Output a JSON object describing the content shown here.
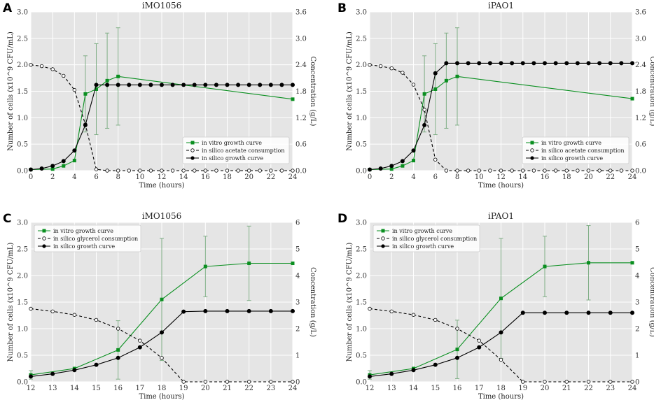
{
  "colors": {
    "vitro": "#0a8f20",
    "silico_growth": "#000000",
    "consumption": "#000000",
    "errbar": "#7fae85"
  },
  "chart_data": [
    {
      "type": "line",
      "panel": "A",
      "title": "iMO1056",
      "xlabel": "Time (hours)",
      "ylabel": "Number of cells (x10^9 CFU/mL)",
      "y2label": "Concentration (g/L)",
      "xlim": [
        0,
        24
      ],
      "ylim": [
        0,
        3.0
      ],
      "y2lim": [
        0,
        3.6
      ],
      "xticks": [
        "0",
        "2",
        "4",
        "6",
        "8",
        "10",
        "12",
        "14",
        "16",
        "18",
        "20",
        "22",
        "24"
      ],
      "yticks": [
        "0.0",
        "0.5",
        "1.0",
        "1.5",
        "2.0",
        "2.5",
        "3.0"
      ],
      "y2ticks": [
        "0.0",
        "0.6",
        "1.2",
        "1.8",
        "2.4",
        "3.0",
        "3.6"
      ],
      "legend_position": "lower-right",
      "series": [
        {
          "name": "in vitro growth curve",
          "style": "vitro",
          "axis": "left",
          "x": [
            0,
            2,
            3,
            4,
            5,
            6,
            7,
            8,
            24
          ],
          "y": [
            0.02,
            0.03,
            0.09,
            0.19,
            1.45,
            1.54,
            1.7,
            1.78,
            1.35
          ],
          "err": [
            0,
            0,
            0,
            0,
            0.72,
            0.86,
            0.9,
            0.92,
            0
          ]
        },
        {
          "name": "in silico acetate consumption",
          "style": "consumption",
          "axis": "right",
          "x": [
            0,
            1,
            2,
            3,
            4,
            5,
            6,
            7,
            8,
            9,
            10,
            11,
            12,
            13,
            14,
            15,
            16,
            17,
            18,
            19,
            20,
            21,
            22,
            23,
            24
          ],
          "y": [
            2.4,
            2.37,
            2.3,
            2.15,
            1.83,
            1.05,
            0.03,
            0,
            0,
            0,
            0,
            0,
            0,
            0,
            0,
            0,
            0,
            0,
            0,
            0,
            0,
            0,
            0,
            0,
            0
          ]
        },
        {
          "name": "in silico growth curve",
          "style": "silico",
          "axis": "left",
          "x": [
            0,
            1,
            2,
            3,
            4,
            5,
            6,
            7,
            8,
            9,
            10,
            11,
            12,
            13,
            14,
            15,
            16,
            17,
            18,
            19,
            20,
            21,
            22,
            23,
            24
          ],
          "y": [
            0.02,
            0.04,
            0.09,
            0.18,
            0.38,
            0.86,
            1.62,
            1.62,
            1.62,
            1.62,
            1.62,
            1.62,
            1.62,
            1.62,
            1.62,
            1.62,
            1.62,
            1.62,
            1.62,
            1.62,
            1.62,
            1.62,
            1.62,
            1.62,
            1.62
          ]
        }
      ]
    },
    {
      "type": "line",
      "panel": "B",
      "title": "iPAO1",
      "xlabel": "Time (hours)",
      "ylabel": "Number of cells (x10^9 CFU/mL)",
      "y2label": "Concentration (g/L)",
      "xlim": [
        0,
        24
      ],
      "ylim": [
        0,
        3.0
      ],
      "y2lim": [
        0,
        3.6
      ],
      "xticks": [
        "0",
        "2",
        "4",
        "6",
        "8",
        "10",
        "12",
        "14",
        "16",
        "18",
        "20",
        "22",
        "24"
      ],
      "yticks": [
        "0.0",
        "0.5",
        "1.0",
        "1.5",
        "2.0",
        "2.5",
        "3.0"
      ],
      "y2ticks": [
        "0.0",
        "0.6",
        "1.2",
        "1.8",
        "2.4",
        "3.0",
        "3.6"
      ],
      "legend_position": "lower-right",
      "series": [
        {
          "name": "in vitro growth curve",
          "style": "vitro",
          "axis": "left",
          "x": [
            0,
            2,
            3,
            4,
            5,
            6,
            7,
            8,
            24
          ],
          "y": [
            0.02,
            0.03,
            0.09,
            0.19,
            1.45,
            1.54,
            1.7,
            1.78,
            1.36
          ],
          "err": [
            0,
            0,
            0,
            0,
            0.72,
            0.86,
            0.9,
            0.92,
            0
          ]
        },
        {
          "name": "in silico acetate consumption",
          "style": "consumption",
          "axis": "right",
          "x": [
            0,
            1,
            2,
            3,
            4,
            5,
            6,
            7,
            8,
            9,
            10,
            11,
            12,
            13,
            14,
            15,
            16,
            17,
            18,
            19,
            20,
            21,
            22,
            23,
            24
          ],
          "y": [
            2.4,
            2.37,
            2.32,
            2.22,
            1.95,
            1.38,
            0.25,
            0,
            0,
            0,
            0,
            0,
            0,
            0,
            0,
            0,
            0,
            0,
            0,
            0,
            0,
            0,
            0,
            0,
            0
          ]
        },
        {
          "name": "in silico growth curve",
          "style": "silico",
          "axis": "left",
          "x": [
            0,
            1,
            2,
            3,
            4,
            5,
            6,
            7,
            8,
            9,
            10,
            11,
            12,
            13,
            14,
            15,
            16,
            17,
            18,
            19,
            20,
            21,
            22,
            23,
            24
          ],
          "y": [
            0.02,
            0.04,
            0.09,
            0.18,
            0.38,
            0.86,
            1.84,
            2.03,
            2.03,
            2.03,
            2.03,
            2.03,
            2.03,
            2.03,
            2.03,
            2.03,
            2.03,
            2.03,
            2.03,
            2.03,
            2.03,
            2.03,
            2.03,
            2.03,
            2.03
          ]
        }
      ]
    },
    {
      "type": "line",
      "panel": "C",
      "title": "iMO1056",
      "xlabel": "Time (hours)",
      "ylabel": "Number of cells (x10^9 CFU/mL)",
      "y2label": "Concentration (g/L)",
      "xlim": [
        12,
        24
      ],
      "ylim": [
        0,
        3.0
      ],
      "y2lim": [
        0,
        6
      ],
      "xticks": [
        "12",
        "13",
        "14",
        "15",
        "16",
        "17",
        "18",
        "19",
        "20",
        "21",
        "22",
        "23",
        "24"
      ],
      "yticks": [
        "0.0",
        "0.5",
        "1.0",
        "1.5",
        "2.0",
        "2.5",
        "3.0"
      ],
      "y2ticks": [
        "0",
        "1",
        "2",
        "3",
        "4",
        "5",
        "6"
      ],
      "legend_position": "upper-left",
      "series": [
        {
          "name": "in vitro growth curve",
          "style": "vitro",
          "axis": "left",
          "x": [
            12,
            14,
            16,
            18,
            20,
            22,
            24
          ],
          "y": [
            0.13,
            0.25,
            0.6,
            1.55,
            2.17,
            2.23,
            2.23
          ],
          "err": [
            0.08,
            0,
            0.55,
            1.15,
            0.57,
            0.7,
            0
          ]
        },
        {
          "name": "in silico glycerol consumption",
          "style": "consumption",
          "axis": "right",
          "x": [
            12,
            13,
            14,
            15,
            16,
            17,
            18,
            19,
            20,
            21,
            22,
            23,
            24
          ],
          "y": [
            2.75,
            2.65,
            2.52,
            2.33,
            2.0,
            1.55,
            0.9,
            0,
            0,
            0,
            0,
            0,
            0
          ]
        },
        {
          "name": "in silico growth curve",
          "style": "silico",
          "axis": "left",
          "x": [
            12,
            13,
            14,
            15,
            16,
            17,
            18,
            19,
            20,
            21,
            22,
            23,
            24
          ],
          "y": [
            0.1,
            0.15,
            0.22,
            0.32,
            0.45,
            0.65,
            0.93,
            1.32,
            1.33,
            1.33,
            1.33,
            1.33,
            1.33
          ]
        }
      ]
    },
    {
      "type": "line",
      "panel": "D",
      "title": "iPAO1",
      "xlabel": "Time (hours)",
      "ylabel": "Number of cells (x10^9 CFU/mL)",
      "y2label": "Concentration (g/L)",
      "xlim": [
        12,
        24
      ],
      "ylim": [
        0,
        3.0
      ],
      "y2lim": [
        0,
        6
      ],
      "xticks": [
        "12",
        "13",
        "14",
        "15",
        "16",
        "17",
        "18",
        "19",
        "20",
        "21",
        "22",
        "23",
        "24"
      ],
      "yticks": [
        "0.0",
        "0.5",
        "1.0",
        "1.5",
        "2.0",
        "2.5",
        "3.0"
      ],
      "y2ticks": [
        "0",
        "1",
        "2",
        "3",
        "4",
        "5",
        "6"
      ],
      "legend_position": "upper-left",
      "series": [
        {
          "name": "in vitro growth curve",
          "style": "vitro",
          "axis": "left",
          "x": [
            12,
            14,
            16,
            18,
            20,
            22,
            24
          ],
          "y": [
            0.13,
            0.25,
            0.61,
            1.57,
            2.17,
            2.24,
            2.24
          ],
          "err": [
            0.08,
            0,
            0.55,
            1.13,
            0.57,
            0.7,
            0
          ]
        },
        {
          "name": "in silico glycerol consumption",
          "style": "consumption",
          "axis": "right",
          "x": [
            12,
            13,
            14,
            15,
            16,
            17,
            18,
            19,
            20,
            21,
            22,
            23,
            24
          ],
          "y": [
            2.75,
            2.65,
            2.52,
            2.33,
            2.0,
            1.55,
            0.83,
            0,
            0,
            0,
            0,
            0,
            0
          ]
        },
        {
          "name": "in silico growth curve",
          "style": "silico",
          "axis": "left",
          "x": [
            12,
            13,
            14,
            15,
            16,
            17,
            18,
            19,
            20,
            21,
            22,
            23,
            24
          ],
          "y": [
            0.1,
            0.15,
            0.22,
            0.32,
            0.45,
            0.65,
            0.93,
            1.3,
            1.3,
            1.3,
            1.3,
            1.3,
            1.3
          ]
        }
      ]
    }
  ]
}
